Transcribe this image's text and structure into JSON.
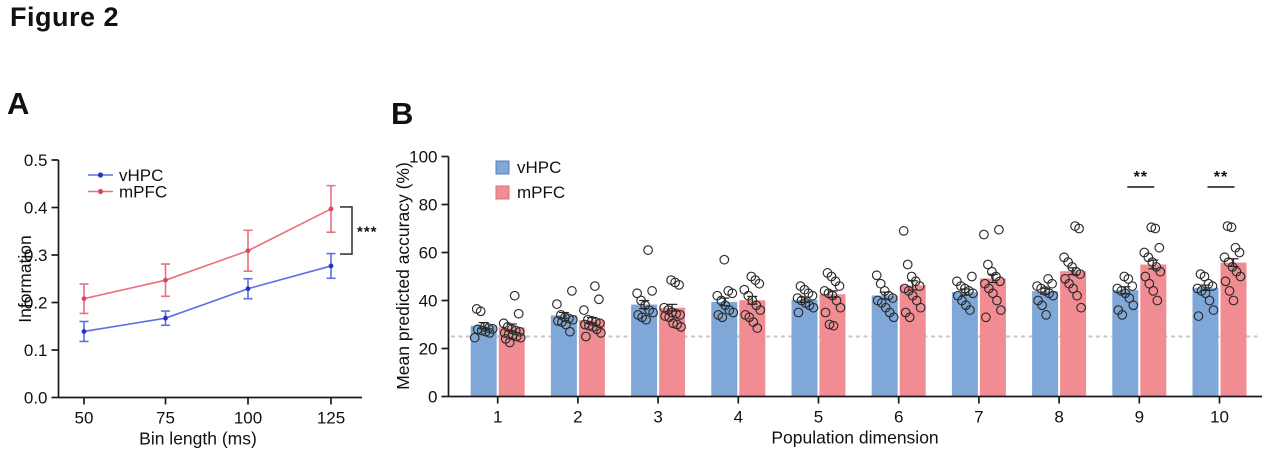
{
  "figure": {
    "title": "Figure 2"
  },
  "panels": [
    {
      "label": "A"
    },
    {
      "label": "B"
    }
  ],
  "chart_data": [
    {
      "panel": "A",
      "type": "line",
      "xlabel": "Bin length (ms)",
      "ylabel": "Information",
      "x": [
        50,
        75,
        100,
        125
      ],
      "ylim": [
        0.0,
        0.5
      ],
      "yticks": [
        0.0,
        0.1,
        0.2,
        0.3,
        0.4,
        0.5
      ],
      "legend_position": "top-left",
      "series": [
        {
          "name": "vHPC",
          "color": "#5c6fe6",
          "marker_color": "#2433c0",
          "values": [
            0.139,
            0.167,
            0.229,
            0.277
          ],
          "sem": [
            0.021,
            0.015,
            0.021,
            0.026
          ]
        },
        {
          "name": "mPFC",
          "color": "#ec6f7e",
          "marker_color": "#d44a58",
          "values": [
            0.208,
            0.247,
            0.309,
            0.397
          ],
          "sem": [
            0.031,
            0.034,
            0.043,
            0.049
          ]
        }
      ],
      "significance": {
        "label": "***",
        "at_x": 125,
        "compares": [
          "mPFC",
          "vHPC"
        ],
        "bracket_color": "#3a3a3a"
      }
    },
    {
      "panel": "B",
      "type": "bar",
      "xlabel": "Population dimension",
      "ylabel": "Mean predicted accuracy (%)",
      "categories": [
        1,
        2,
        3,
        4,
        5,
        6,
        7,
        8,
        9,
        10
      ],
      "ylim": [
        0,
        100
      ],
      "yticks": [
        0,
        20,
        40,
        60,
        80,
        100
      ],
      "chance_line": 25,
      "chance_line_color": "#c9c9c9",
      "legend_position": "top-left",
      "point_outline_color": "#2b2b2b",
      "error_color": "#222222",
      "series": [
        {
          "name": "vHPC",
          "color": "#7fa8d9",
          "means": [
            29.5,
            33.8,
            38.3,
            39.4,
            40.3,
            42.1,
            43.5,
            43.9,
            44.3,
            45.3
          ],
          "sem": [
            1.3,
            1.2,
            1.7,
            1.6,
            1.1,
            1.4,
            1.3,
            1.2,
            1.4,
            1.1
          ],
          "points": [
            [
              24.5,
              26.5,
              27,
              27.5,
              28,
              28.2,
              28.5,
              29,
              35.5,
              36.5
            ],
            [
              27,
              30,
              31,
              31.5,
              32,
              32.5,
              33,
              34,
              38.5,
              44
            ],
            [
              32,
              33,
              34,
              35,
              36,
              38,
              40,
              43,
              44,
              61
            ],
            [
              33,
              34,
              35,
              36,
              38,
              40,
              42,
              43,
              44,
              57
            ],
            [
              35,
              37,
              38,
              39,
              40,
              41,
              42,
              43,
              44.5,
              46
            ],
            [
              33,
              35,
              37,
              39,
              40,
              41,
              42,
              44,
              47,
              50.5
            ],
            [
              36,
              38,
              40,
              42,
              43,
              44,
              45,
              46,
              48,
              50
            ],
            [
              34,
              38,
              40,
              42,
              43,
              44,
              45,
              46,
              47,
              49
            ],
            [
              34,
              36,
              38,
              41,
              43,
              44,
              45,
              46,
              49,
              50
            ],
            [
              33.5,
              36,
              40,
              43,
              44,
              45,
              46,
              47,
              50,
              51
            ]
          ]
        },
        {
          "name": "mPFC",
          "color": "#f18c92",
          "means": [
            28.8,
            31.8,
            37.0,
            40.1,
            42.6,
            46.3,
            49.2,
            52.2,
            55.0,
            55.8
          ],
          "sem": [
            1.4,
            1.1,
            1.4,
            1.6,
            1.4,
            1.9,
            1.7,
            1.4,
            1.8,
            1.6
          ],
          "points": [
            [
              22.5,
              24,
              24.5,
              25,
              25.5,
              26,
              26.5,
              27,
              27.5,
              28,
              29,
              30.5,
              34.5,
              42
            ],
            [
              25,
              26.5,
              28,
              29,
              29.5,
              30,
              30.5,
              31,
              31.5,
              32,
              36,
              40.5,
              46
            ],
            [
              29,
              30,
              30.5,
              33,
              33.5,
              34,
              34.5,
              35,
              36,
              37,
              46.5,
              47.5,
              48.5
            ],
            [
              28.5,
              31,
              33,
              34,
              36,
              38,
              40,
              42,
              44.5,
              47,
              48.5,
              50
            ],
            [
              29.5,
              30,
              35,
              37,
              40,
              42,
              43,
              44,
              46,
              48,
              50,
              51.5
            ],
            [
              33,
              35,
              37,
              40,
              42,
              44,
              45,
              46,
              48,
              50,
              55,
              69
            ],
            [
              33,
              36,
              40,
              43,
              45,
              47,
              48,
              50,
              52,
              55,
              67.5,
              69.5
            ],
            [
              37,
              42,
              45,
              47,
              49,
              51,
              52,
              54,
              56,
              58,
              70,
              71
            ],
            [
              40,
              44,
              47,
              50,
              52,
              54,
              56,
              58,
              60,
              62,
              70,
              70.5
            ],
            [
              40,
              44,
              48,
              50,
              52,
              54,
              56,
              58,
              60,
              62,
              70.5,
              71
            ]
          ]
        }
      ],
      "significance": [
        {
          "category": 9,
          "label": "**"
        },
        {
          "category": 10,
          "label": "**"
        }
      ]
    }
  ]
}
